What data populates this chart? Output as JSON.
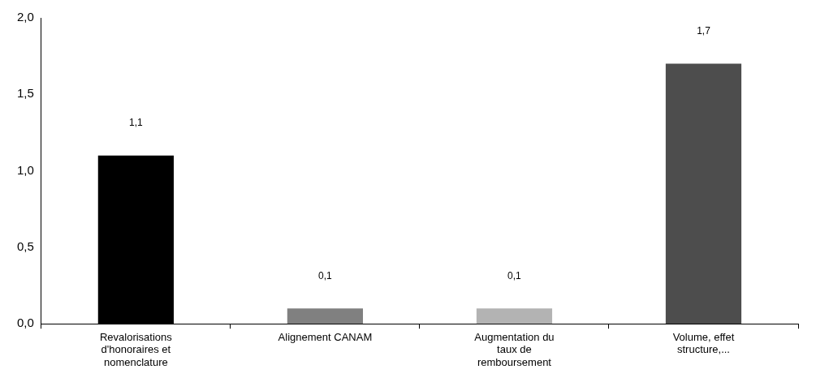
{
  "chart_data": {
    "type": "bar",
    "categories": [
      "Revalorisations d'honoraires et nomenclature",
      "Alignement CANAM",
      "Augmentation du taux de remboursement",
      "Volume, effet structure,..."
    ],
    "values": [
      1.1,
      0.1,
      0.1,
      1.7
    ],
    "colors": [
      "#000000",
      "#808080",
      "#b3b3b3",
      "#4d4d4d"
    ],
    "value_labels": [
      "1,1",
      "0,1",
      "0,1",
      "1,7"
    ],
    "ylim": [
      0,
      2
    ],
    "yticks": [
      {
        "value": 0,
        "label": "0,0"
      },
      {
        "value": 0.5,
        "label": "0,5"
      },
      {
        "value": 1,
        "label": "1,0"
      },
      {
        "value": 1.5,
        "label": "1,5"
      },
      {
        "value": 2,
        "label": "2,0"
      }
    ],
    "grid": false,
    "legend": false
  }
}
